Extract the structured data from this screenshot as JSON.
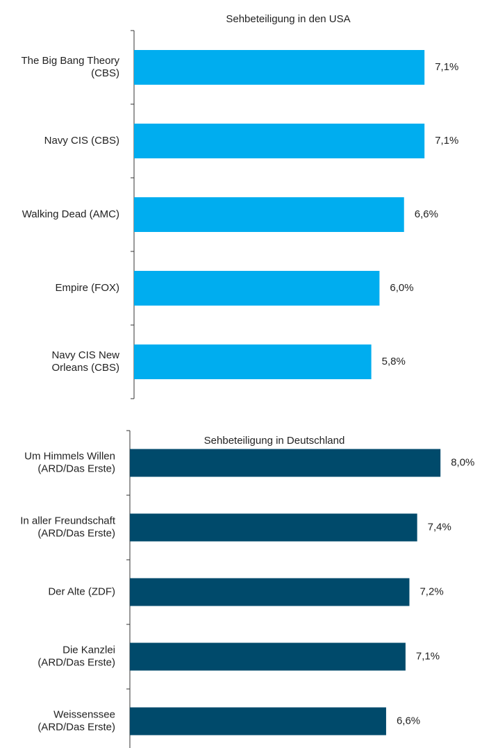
{
  "chart_data": [
    {
      "type": "barh",
      "title": "Sehbeteiligung in den USA",
      "color": "#00adef",
      "categories": [
        "The Big Bang Theory\n(CBS)",
        "Navy CIS (CBS)",
        "Walking Dead (AMC)",
        "Empire (FOX)",
        "Navy CIS New\nOrleans (CBS)"
      ],
      "values": [
        7.1,
        7.1,
        6.6,
        6.0,
        5.8
      ],
      "value_labels": [
        "7,1%",
        "7,1%",
        "6,6%",
        "6,0%",
        "5,8%"
      ]
    },
    {
      "type": "barh",
      "title": "Sehbeteiligung in Deutschland",
      "color": "#004a6b",
      "categories": [
        "Um Himmels Willen\n(ARD/Das Erste)",
        "In aller Freundschaft\n(ARD/Das Erste)",
        "Der Alte (ZDF)",
        "Die Kanzlei\n(ARD/Das Erste)",
        "Weissenssee\n(ARD/Das Erste)"
      ],
      "values": [
        8.0,
        7.4,
        7.2,
        7.1,
        6.6
      ],
      "value_labels": [
        "8,0%",
        "7,4%",
        "7,2%",
        "7,1%",
        "6,6%"
      ]
    }
  ]
}
